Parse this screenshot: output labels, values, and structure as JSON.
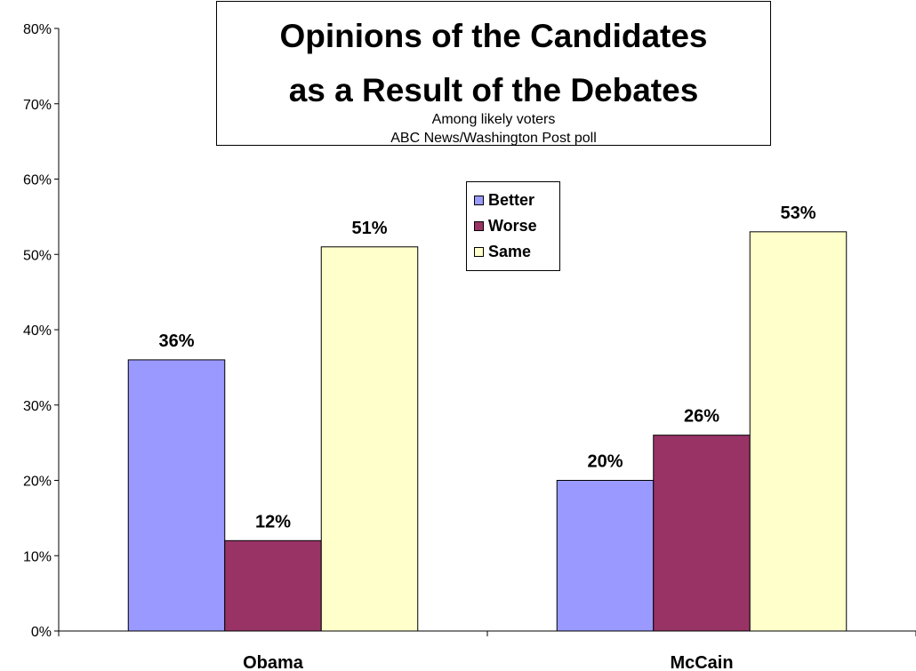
{
  "chart_data": {
    "type": "bar",
    "title": "Opinions of the Candidates as a Result of the Debates",
    "title_lines": [
      "Opinions of the Candidates",
      "as a Result of the Debates"
    ],
    "subtitle_lines": [
      "Among likely voters",
      "ABC News/Washington Post poll"
    ],
    "categories": [
      "Obama",
      "McCain"
    ],
    "series": [
      {
        "name": "Better",
        "values": [
          36,
          20
        ],
        "color": "#9999ff",
        "labels": [
          "36%",
          "20%"
        ]
      },
      {
        "name": "Worse",
        "values": [
          12,
          26
        ],
        "color": "#993366",
        "labels": [
          "12%",
          "26%"
        ]
      },
      {
        "name": "Same",
        "values": [
          51,
          53
        ],
        "color": "#ffffcc",
        "labels": [
          "51%",
          "53%"
        ]
      }
    ],
    "ylim": [
      0,
      80
    ],
    "yticks": [
      0,
      10,
      20,
      30,
      40,
      50,
      60,
      70,
      80
    ],
    "ytick_labels": [
      "0%",
      "10%",
      "20%",
      "30%",
      "40%",
      "50%",
      "60%",
      "70%",
      "80%"
    ],
    "xlabel": "",
    "ylabel": "",
    "grid": false,
    "legend_position": "top-center"
  }
}
